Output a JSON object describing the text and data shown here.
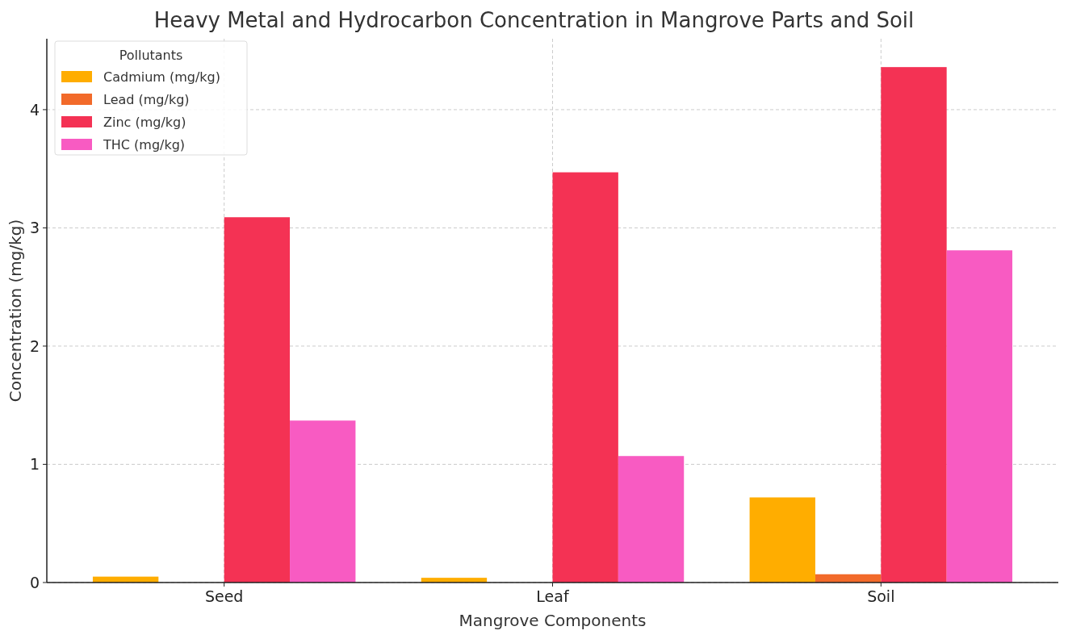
{
  "chart_data": {
    "type": "bar",
    "title": "Heavy Metal and Hydrocarbon Concentration in Mangrove Parts and Soil",
    "xlabel": "Mangrove Components",
    "ylabel": "Concentration (mg/kg)",
    "legend_title": "Pollutants",
    "categories": [
      "Seed",
      "Leaf",
      "Soil"
    ],
    "series": [
      {
        "name": "Cadmium (mg/kg)",
        "color": "#ffad00",
        "values": [
          0.05,
          0.04,
          0.72
        ]
      },
      {
        "name": "Lead (mg/kg)",
        "color": "#f26a2a",
        "values": [
          0,
          0,
          0.07
        ]
      },
      {
        "name": "Zinc (mg/kg)",
        "color": "#f43254",
        "values": [
          3.09,
          3.47,
          4.36
        ]
      },
      {
        "name": "THC (mg/kg)",
        "color": "#f85bc2",
        "values": [
          1.37,
          1.07,
          2.81
        ]
      }
    ],
    "ylim": [
      0,
      4.6
    ],
    "yticks": [
      0,
      1,
      2,
      3,
      4
    ],
    "grid": true,
    "legend": "top left"
  }
}
